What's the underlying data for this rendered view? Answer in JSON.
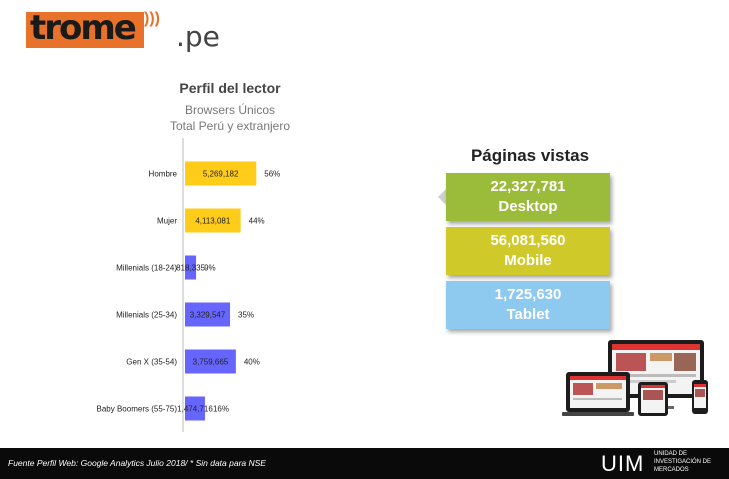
{
  "logo": {
    "word": "trome",
    "suffix": ".pe"
  },
  "chart_data": {
    "type": "bar",
    "title": "Perfil del lector",
    "subtitle_1": "Browsers Únicos",
    "subtitle_2": "Total Perú y extranjero",
    "categories": [
      "Hombre",
      "Mujer",
      "Millenials (18-24)",
      "Millenials (25-34)",
      "Gen X (35-54)",
      "Baby Boomers (55-75)"
    ],
    "values": [
      5269182,
      4113081,
      818335,
      3329547,
      3759665,
      1474716
    ],
    "value_labels": [
      "5,269,182",
      "4,113,081",
      "818,335",
      "3,329,547",
      "3,759,665",
      "1,474,716"
    ],
    "percent_labels": [
      "56%",
      "44%",
      "9%",
      "35%",
      "40%",
      "16%"
    ],
    "colors": [
      "#ffcc1a",
      "#ffcc1a",
      "#6666ff",
      "#6666ff",
      "#6666ff",
      "#6666ff"
    ],
    "xlim": [
      0,
      10000000
    ],
    "orientation": "horizontal"
  },
  "pageviews": {
    "title": "Páginas vistas",
    "desktop": {
      "value": "22,327,781",
      "label": "Desktop",
      "color": "#9bbb3a"
    },
    "mobile": {
      "value": "56,081,560",
      "label": "Mobile",
      "color": "#cfc92a"
    },
    "tablet": {
      "value": "1,725,630",
      "label": "Tablet",
      "color": "#8ec9f0"
    }
  },
  "footer": {
    "note": "Fuente Perfil Web: Google Analytics Julio 2018/  * Sin data para NSE",
    "brand": "UIM",
    "brand_line1": "UNIDAD DE",
    "brand_line2": "INVESTIGACIÓN DE",
    "brand_line3": "MERCADOS"
  }
}
